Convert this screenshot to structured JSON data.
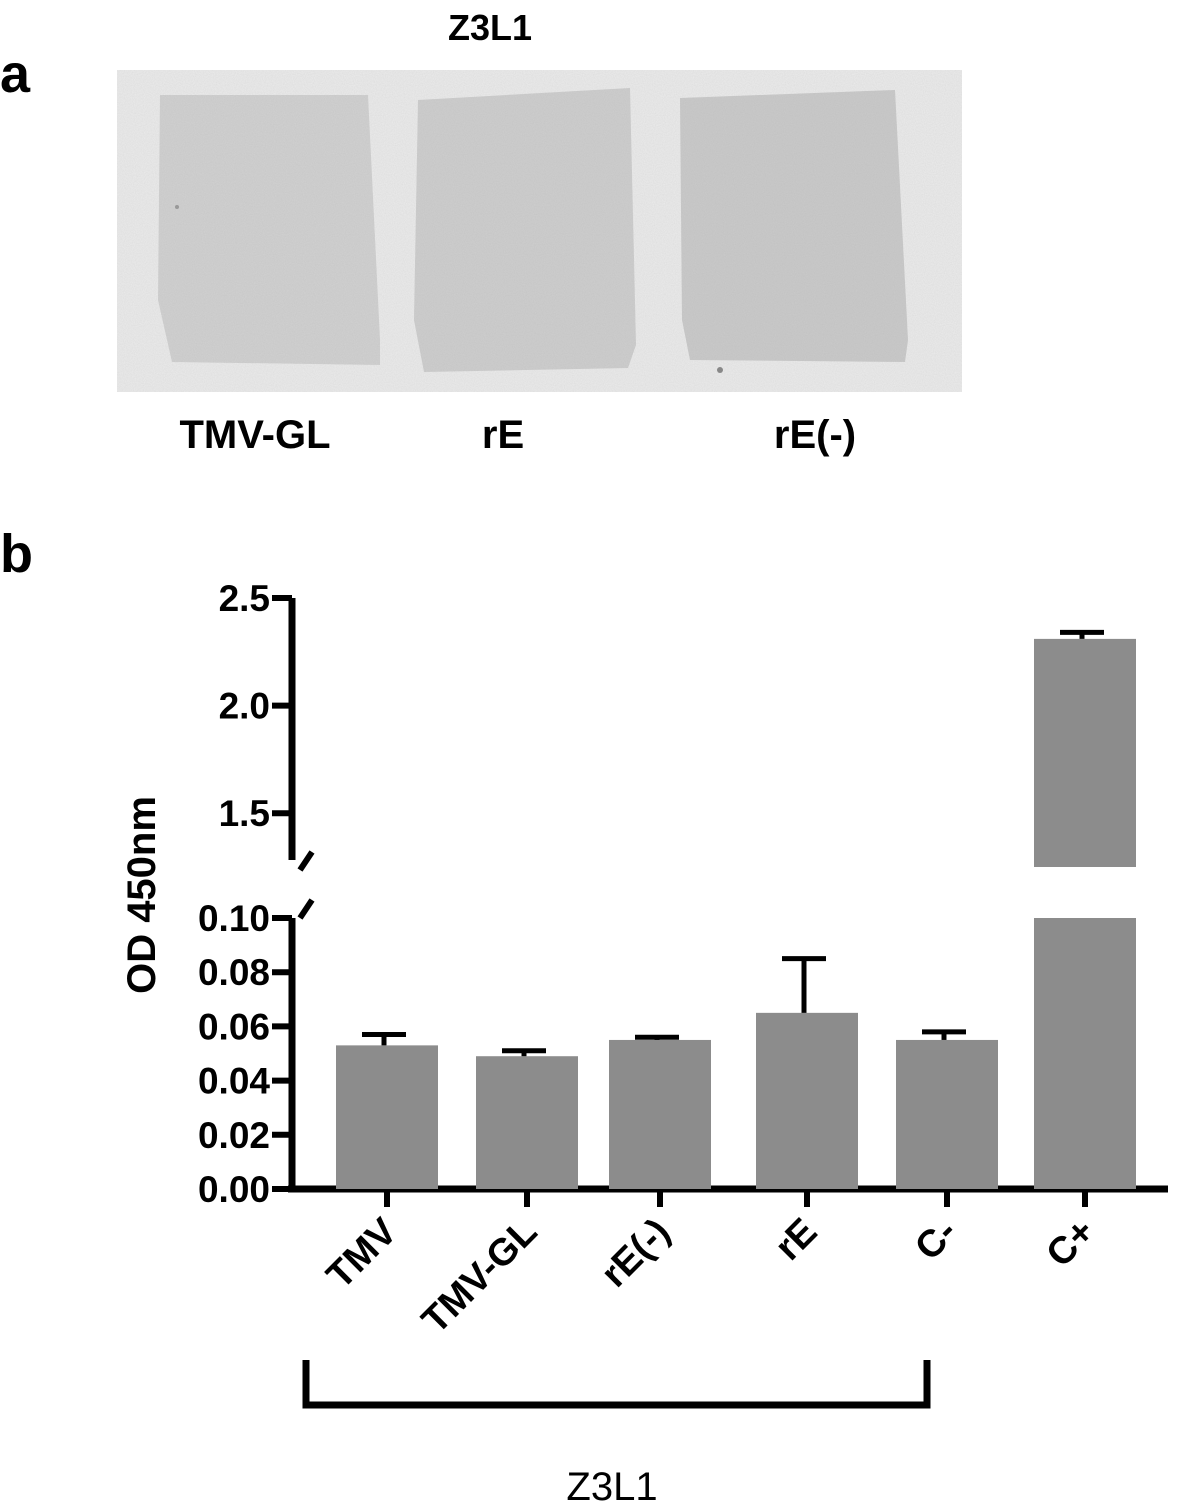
{
  "panel_a": {
    "label": "a",
    "title": "Z3L1",
    "lanes": [
      "TMV-GL",
      "rE",
      "rE(-)"
    ]
  },
  "panel_b": {
    "label": "b",
    "bracket_label": "Z3L1"
  },
  "chart_data": {
    "type": "bar",
    "ylabel": "OD 450nm",
    "xlabel": "",
    "categories": [
      "TMV",
      "TMV-GL",
      "rE(-)",
      "rE",
      "C-",
      "C+"
    ],
    "series": [
      {
        "values": [
          0.053,
          0.049,
          0.055,
          0.065,
          0.055,
          2.31
        ],
        "error_upper": [
          0.004,
          0.002,
          0.001,
          0.02,
          0.003,
          0.03
        ]
      }
    ],
    "broken_axis": {
      "lower_segment": {
        "ylim": [
          0,
          0.1
        ],
        "ticks": [
          "0.00",
          "0.02",
          "0.04",
          "0.06",
          "0.08",
          "0.10"
        ]
      },
      "upper_segment": {
        "ylim": [
          1.25,
          2.5
        ],
        "ticks": [
          "1.5",
          "2.0",
          "2.5"
        ]
      }
    },
    "bar_color": "#8c8c8c",
    "grid": false,
    "legend": "none"
  }
}
